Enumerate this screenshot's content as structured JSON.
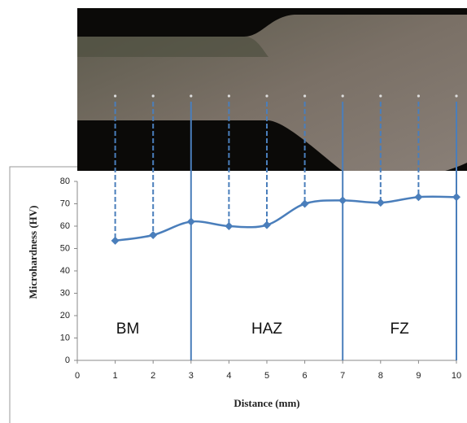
{
  "chart_data": {
    "type": "line",
    "x": [
      1,
      2,
      3,
      4,
      5,
      6,
      7,
      8,
      9,
      10
    ],
    "values": [
      53.5,
      56,
      62,
      60,
      60.5,
      70,
      71.5,
      70.5,
      73,
      73
    ],
    "color": "#4a7ebb",
    "xlabel": "Distance (mm)",
    "ylabel": "Microhardness (HV)",
    "xlim": [
      0,
      10
    ],
    "xticks": [
      0,
      1,
      2,
      3,
      4,
      5,
      6,
      7,
      8,
      9,
      10
    ],
    "ylim": [
      0,
      80
    ],
    "yticks": [
      0,
      10,
      20,
      30,
      40,
      50,
      60,
      70,
      80
    ],
    "annotations": [
      "BM",
      "HAZ",
      "FZ"
    ]
  }
}
